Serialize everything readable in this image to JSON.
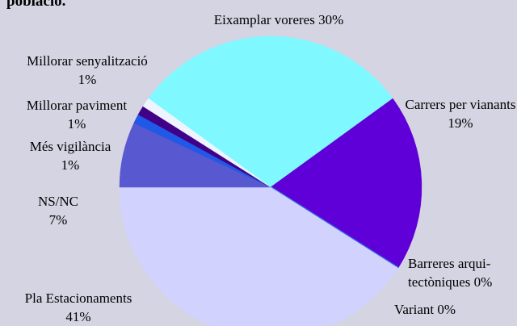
{
  "chart_data": {
    "type": "pie",
    "title": "població.",
    "categories": [
      "Eixamplar voreres",
      "Carrers per vianants",
      "Barreres arqui-tectòniques",
      "Variant",
      "Pla Estacionaments",
      "NS/NC",
      "Més vigilància",
      "Millorar paviment",
      "Millorar senyalització"
    ],
    "values": [
      30,
      19,
      0,
      0,
      41,
      7,
      1,
      1,
      1
    ],
    "value_labels": [
      "30%",
      "19%",
      "0%",
      "0%",
      "41%",
      "7%",
      "1%",
      "1%",
      "1%"
    ],
    "colors": [
      "#80f8ff",
      "#6000d8",
      "#1030c0",
      "#3060e0",
      "#d2d2ff",
      "#5858d0",
      "#2058e8",
      "#400088",
      "#eef4ff"
    ]
  }
}
